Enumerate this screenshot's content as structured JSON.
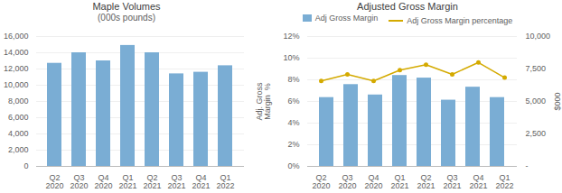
{
  "chart_data": [
    {
      "type": "bar",
      "title": "Maple Volumes",
      "subtitle": "(000s pounds)",
      "categories": [
        "Q2\n2020",
        "Q3\n2020",
        "Q4\n2020",
        "Q1\n2021",
        "Q2\n2021",
        "Q3\n2021",
        "Q4\n2021",
        "Q1\n2022"
      ],
      "values": [
        12700,
        14000,
        13000,
        14900,
        14000,
        11400,
        11600,
        12400
      ],
      "color": "#7aadd4",
      "ylim": [
        0,
        16000
      ],
      "yticks": [
        0,
        {
          "value": 2000,
          "label": "2,000"
        },
        {
          "value": 4000,
          "label": "4,000"
        },
        {
          "value": 6000,
          "label": "6,000"
        },
        {
          "value": 8000,
          "label": "8,000"
        },
        {
          "value": 10000,
          "label": "10,000"
        },
        {
          "value": 12000,
          "label": "12,000"
        },
        {
          "value": 14000,
          "label": "14,000"
        },
        {
          "value": 16000,
          "label": "16,000"
        }
      ],
      "grid": true
    },
    {
      "type": "bar",
      "title": "Adjusted Gross Margin",
      "categories": [
        "Q2\n2020",
        "Q3\n2020",
        "Q4\n2020",
        "Q1\n2021",
        "Q2\n2021",
        "Q3\n2021",
        "Q4\n2021",
        "Q1\n2022"
      ],
      "series": [
        {
          "name": "Adj Gross Margin",
          "type": "bar",
          "color": "#7aadd4",
          "axis": "y2",
          "values": [
            5300,
            6300,
            5500,
            7000,
            6800,
            5100,
            6100,
            5300
          ]
        },
        {
          "name": "Adj Gross Margin percentage",
          "type": "line",
          "color": "#d4aa00",
          "marker": "circle",
          "values": [
            7.9,
            8.5,
            7.9,
            8.9,
            9.4,
            8.5,
            9.6,
            8.2
          ]
        }
      ],
      "ylabel": "Adj. Gross\nMargin  %",
      "y2label": "$000",
      "ylim": [
        0,
        12
      ],
      "yticks": [
        {
          "value": 0,
          "label": "0%"
        },
        {
          "value": 2,
          "label": "2%"
        },
        {
          "value": 4,
          "label": "4%"
        },
        {
          "value": 6,
          "label": "6%"
        },
        {
          "value": 8,
          "label": "8%"
        },
        {
          "value": 10,
          "label": "10%"
        },
        {
          "value": 12,
          "label": "12%"
        }
      ],
      "y2lim": [
        0,
        10000
      ],
      "y2ticks": [
        {
          "value": 0,
          "label": "-"
        },
        {
          "value": 2500,
          "label": "2,500"
        },
        {
          "value": 5000,
          "label": "5,000"
        },
        {
          "value": 7500,
          "label": "7,500"
        },
        {
          "value": 10000,
          "label": "10,000"
        }
      ],
      "grid": true,
      "legend": "top"
    }
  ]
}
